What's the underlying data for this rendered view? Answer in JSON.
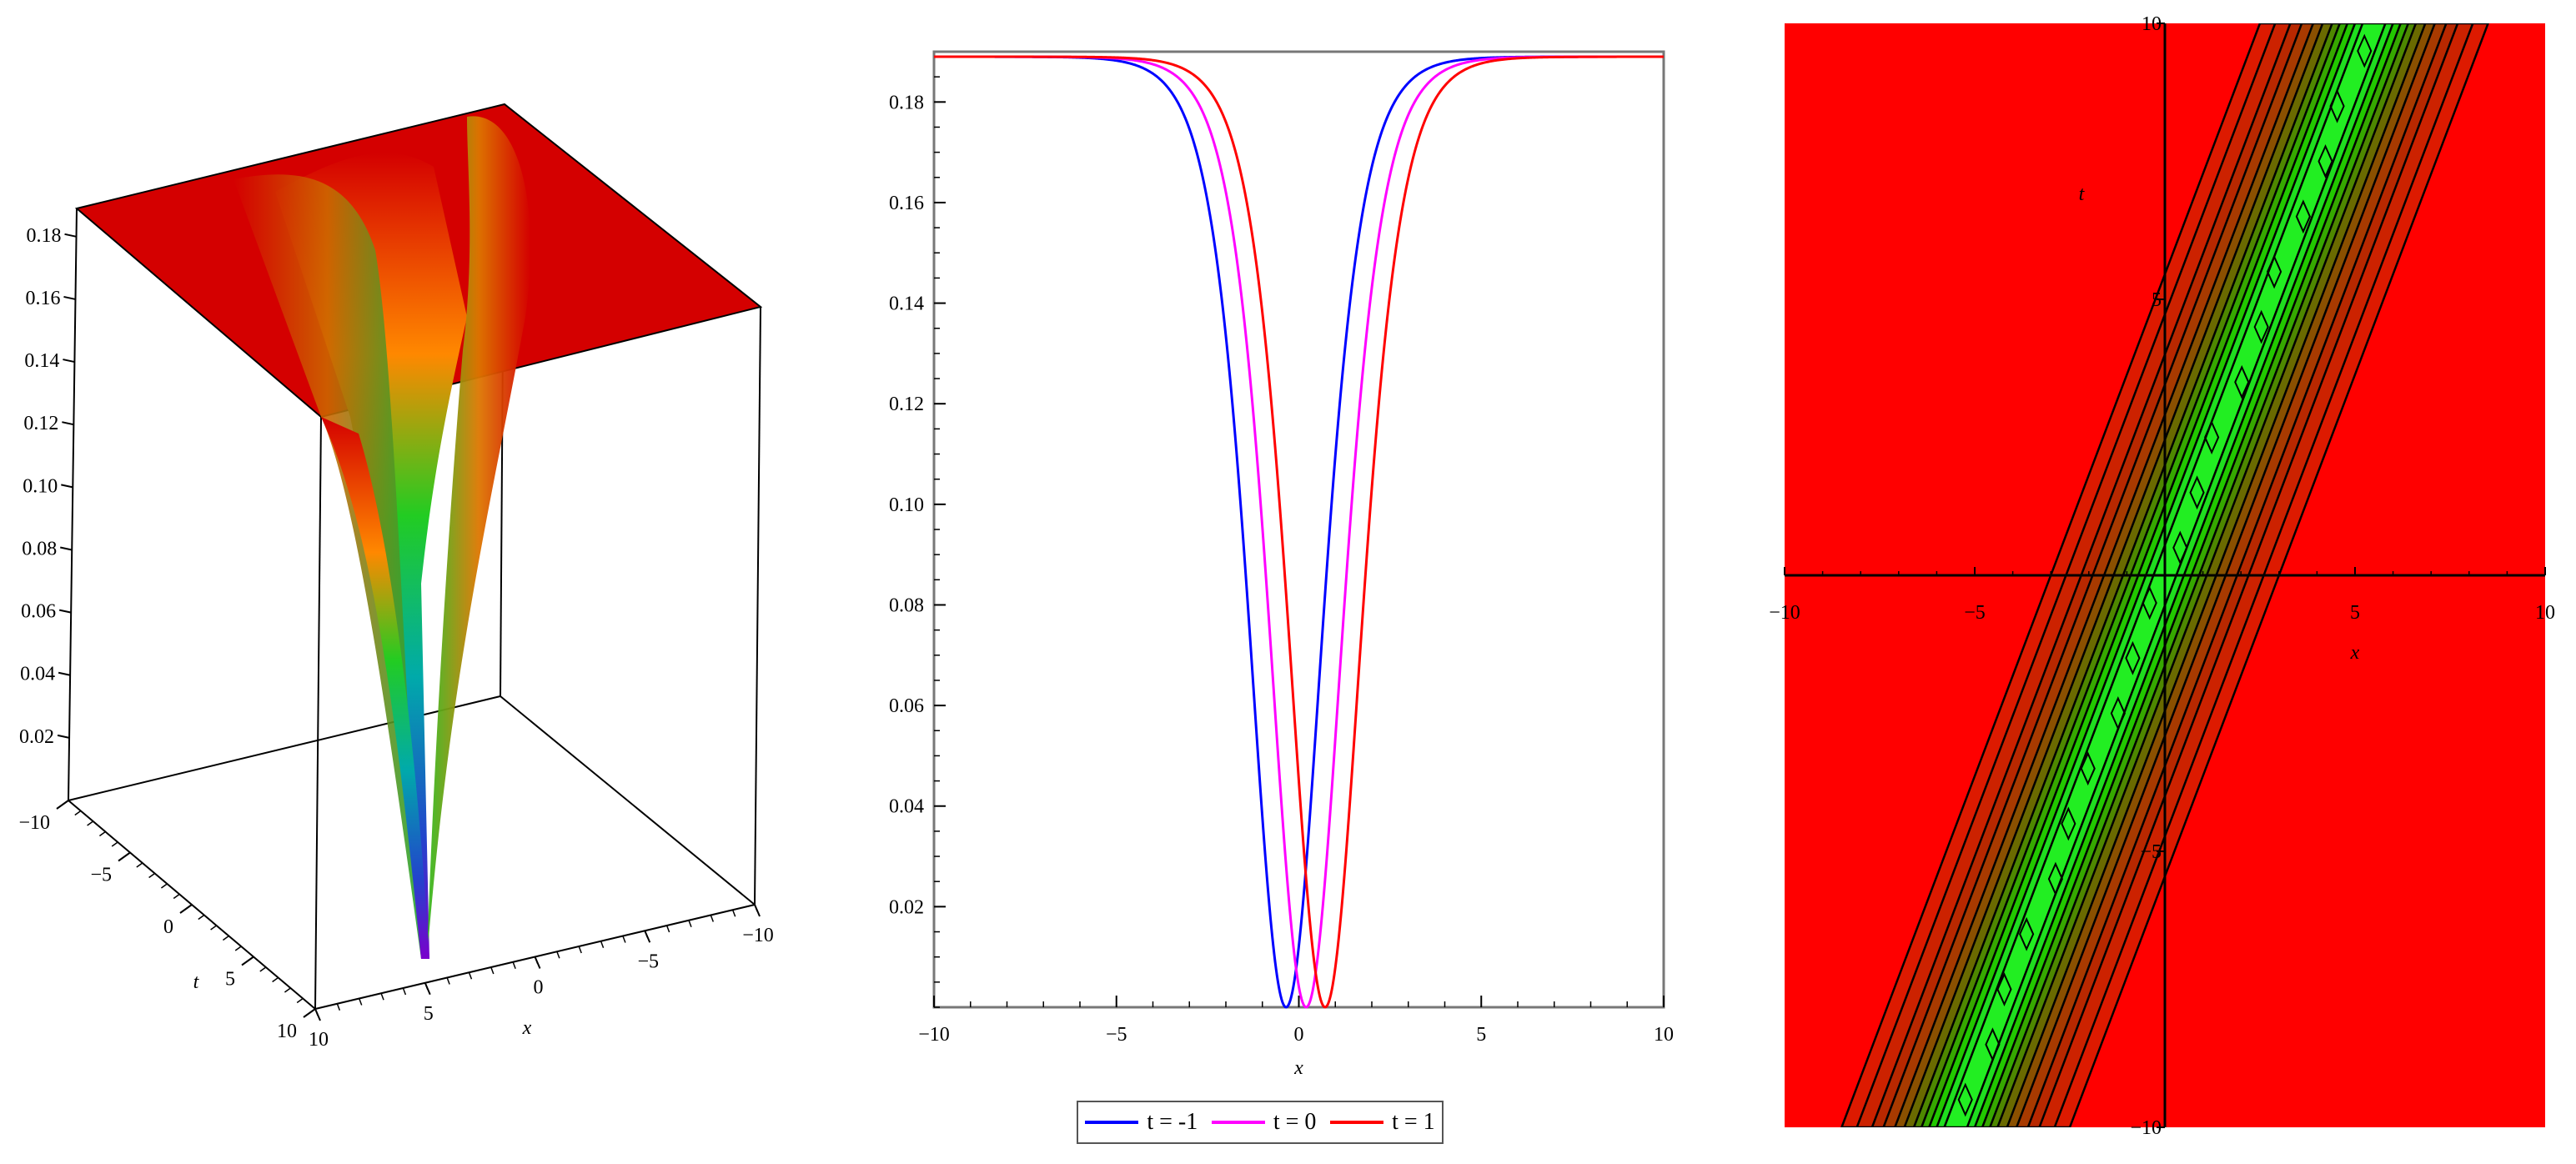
{
  "chart_data": [
    {
      "type": "surface3d",
      "xlabel": "x",
      "ylabel": "t",
      "zlabel": "",
      "x_range": [
        -10,
        10
      ],
      "t_range": [
        -10,
        10
      ],
      "z_ticks": [
        "0.02",
        "0.04",
        "0.06",
        "0.08",
        "0.10",
        "0.12",
        "0.14",
        "0.16",
        "0.18"
      ],
      "x_ticks": [
        "-10",
        "-5",
        "0",
        "5",
        "10"
      ],
      "t_ticks": [
        "-10",
        "-5",
        "0",
        "5",
        "10"
      ],
      "z_plateau": 0.189,
      "z_min": 0.0,
      "colors": {
        "high": "#d40000",
        "low": "#6a0dad"
      }
    },
    {
      "type": "line",
      "xlabel": "x",
      "ylabel": "",
      "xlim": [
        -10,
        10
      ],
      "ylim": [
        0,
        0.19
      ],
      "x_ticks": [
        "-10",
        "-5",
        "0",
        "5",
        "10"
      ],
      "y_ticks": [
        "0.02",
        "0.04",
        "0.06",
        "0.08",
        "0.10",
        "0.12",
        "0.14",
        "0.16",
        "0.18"
      ],
      "plateau": 0.189,
      "series": [
        {
          "name": "t = -1",
          "color": "#0000ff",
          "center": -0.35,
          "width": 1.35
        },
        {
          "name": "t = 0",
          "color": "#ff00ff",
          "center": 0.2,
          "width": 1.35
        },
        {
          "name": "t = 1",
          "color": "#ff0000",
          "center": 0.72,
          "width": 1.35
        }
      ]
    },
    {
      "type": "contour",
      "xlabel": "x",
      "ylabel": "t",
      "xlim": [
        -10,
        10
      ],
      "ylim": [
        -10,
        10
      ],
      "x_ticks": [
        "-10",
        "-5",
        "5",
        "10"
      ],
      "y_ticks": [
        "-10",
        "-5",
        "5",
        "10"
      ],
      "band_slope": 0.55,
      "colors": {
        "background": "#ff0000",
        "center": "#22ee22",
        "mid": "#cc2200",
        "line": "#000000"
      }
    }
  ],
  "legend": {
    "items": [
      {
        "label": "t = -1",
        "color": "#0000ff"
      },
      {
        "label": "t = 0",
        "color": "#ff00ff"
      },
      {
        "label": "t = 1",
        "color": "#ff0000"
      }
    ]
  }
}
